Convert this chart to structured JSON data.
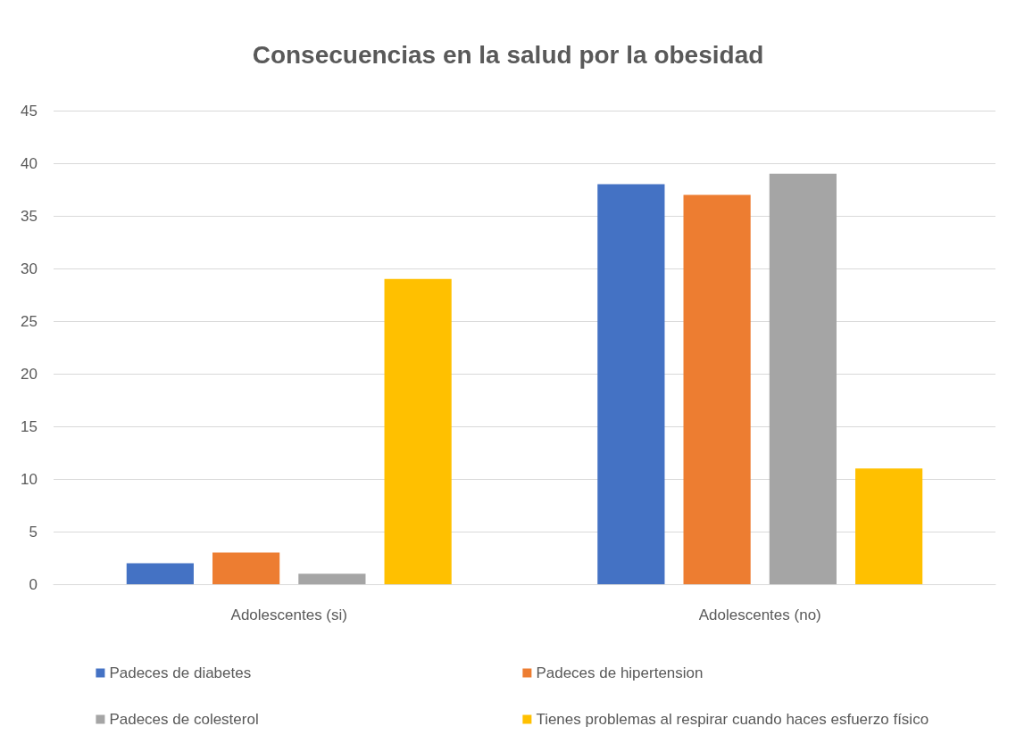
{
  "chart_data": {
    "type": "bar",
    "title": "Consecuencias en la salud por la obesidad",
    "categories": [
      "Adolescentes (si)",
      "Adolescentes (no)"
    ],
    "series": [
      {
        "name": "Padeces de diabetes",
        "color": "#4472c4",
        "values": [
          2,
          38
        ]
      },
      {
        "name": "Padeces de hipertension",
        "color": "#ed7d31",
        "values": [
          3,
          37
        ]
      },
      {
        "name": "Padeces de colesterol",
        "color": "#a5a5a5",
        "values": [
          1,
          39
        ]
      },
      {
        "name": "Tienes problemas al respirar cuando haces esfuerzo físico",
        "color": "#ffc000",
        "values": [
          29,
          11
        ]
      }
    ],
    "ylim": [
      0,
      45
    ],
    "yticks": [
      0,
      5,
      10,
      15,
      20,
      25,
      30,
      35,
      40,
      45
    ],
    "grid": "y",
    "legend": "bottom"
  }
}
